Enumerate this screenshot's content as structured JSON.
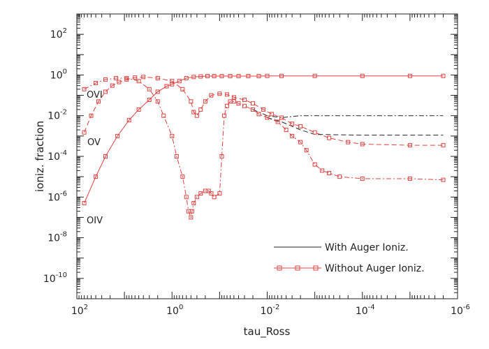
{
  "chart_data": {
    "type": "line",
    "xlabel": "tau_Ross",
    "ylabel": "ioniz. fraction",
    "x_scale": "log",
    "y_scale": "log",
    "x_reversed": true,
    "xlim": [
      100,
      1e-06
    ],
    "ylim": [
      1e-11,
      1000
    ],
    "x_ticks": [
      {
        "value": 100,
        "base": "10",
        "exp": "2"
      },
      {
        "value": 1,
        "base": "10",
        "exp": "0"
      },
      {
        "value": 0.01,
        "base": "10",
        "exp": "-2"
      },
      {
        "value": 0.0001,
        "base": "10",
        "exp": "-4"
      },
      {
        "value": 1e-06,
        "base": "10",
        "exp": "-6"
      }
    ],
    "y_ticks": [
      {
        "value": 1e-10,
        "base": "10",
        "exp": "-10"
      },
      {
        "value": 1e-08,
        "base": "10",
        "exp": "-8"
      },
      {
        "value": 1e-06,
        "base": "10",
        "exp": "-6"
      },
      {
        "value": 0.0001,
        "base": "10",
        "exp": "-4"
      },
      {
        "value": 0.01,
        "base": "10",
        "exp": "-2"
      },
      {
        "value": 1,
        "base": "10",
        "exp": "0"
      },
      {
        "value": 100,
        "base": "10",
        "exp": "2"
      }
    ],
    "legend": {
      "placement": "bottom-right",
      "entries": [
        {
          "label": "With Auger Ioniz.",
          "style": "solid",
          "markers": false
        },
        {
          "label": "Without Auger Ioniz.",
          "style": "solid",
          "markers": true
        }
      ]
    },
    "annotations": [
      "OVI",
      "OV",
      "OIV"
    ],
    "colors": {
      "with_auger": "#222222",
      "without_auger": "#e0403f",
      "axes": "#222222"
    },
    "series": [
      {
        "ion": "OIV",
        "annotation_index": 2,
        "case": "without_auger",
        "dash": "solid",
        "markers": true,
        "points": [
          [
            70,
            5e-07
          ],
          [
            40,
            1e-05
          ],
          [
            25,
            0.0001
          ],
          [
            14,
            0.001
          ],
          [
            8,
            0.006
          ],
          [
            5,
            0.02
          ],
          [
            3,
            0.06
          ],
          [
            2,
            0.15
          ],
          [
            1.3,
            0.28
          ],
          [
            1,
            0.35
          ],
          [
            0.7,
            0.5
          ],
          [
            0.5,
            0.7
          ],
          [
            0.35,
            0.8
          ],
          [
            0.25,
            0.85
          ],
          [
            0.18,
            0.88
          ],
          [
            0.13,
            0.88
          ],
          [
            0.09,
            0.88
          ],
          [
            0.06,
            0.88
          ],
          [
            0.04,
            0.88
          ],
          [
            0.025,
            0.88
          ],
          [
            0.015,
            0.88
          ],
          [
            0.01,
            0.9
          ],
          [
            0.005,
            0.9
          ],
          [
            0.001,
            0.9
          ],
          [
            0.0001,
            0.9
          ],
          [
            1e-05,
            0.9
          ],
          [
            2e-06,
            0.9
          ]
        ]
      },
      {
        "ion": "OV",
        "annotation_index": 1,
        "case": "without_auger",
        "dash": "dashed",
        "markers": true,
        "points": [
          [
            70,
            0.0015
          ],
          [
            50,
            0.01
          ],
          [
            35,
            0.05
          ],
          [
            25,
            0.15
          ],
          [
            18,
            0.3
          ],
          [
            13,
            0.45
          ],
          [
            9,
            0.6
          ],
          [
            6,
            0.75
          ],
          [
            4,
            0.8
          ],
          [
            2,
            0.7
          ],
          [
            1,
            0.5
          ],
          [
            0.6,
            0.2
          ],
          [
            0.4,
            0.05
          ],
          [
            0.35,
            0.015
          ],
          [
            0.3,
            0.01
          ],
          [
            0.25,
            0.02
          ],
          [
            0.2,
            0.05
          ],
          [
            0.15,
            0.1
          ],
          [
            0.1,
            0.12
          ],
          [
            0.07,
            0.11
          ],
          [
            0.05,
            0.08
          ],
          [
            0.03,
            0.06
          ],
          [
            0.02,
            0.04
          ],
          [
            0.012,
            0.02
          ],
          [
            0.008,
            0.012
          ],
          [
            0.005,
            0.008
          ],
          [
            0.003,
            0.004
          ],
          [
            0.002,
            0.003
          ],
          [
            0.001,
            0.0015
          ],
          [
            0.0005,
            0.0008
          ],
          [
            0.0002,
            0.0005
          ],
          [
            0.0001,
            0.0004
          ],
          [
            1e-05,
            0.00035
          ],
          [
            2e-06,
            0.00035
          ]
        ]
      },
      {
        "ion": "OVI",
        "annotation_index": 0,
        "case": "without_auger",
        "dash": "dashdot",
        "markers": true,
        "points": [
          [
            70,
            0.2
          ],
          [
            40,
            0.4
          ],
          [
            25,
            0.6
          ],
          [
            15,
            0.7
          ],
          [
            9,
            0.7
          ],
          [
            5,
            0.5
          ],
          [
            3,
            0.2
          ],
          [
            2,
            0.05
          ],
          [
            1.5,
            0.01
          ],
          [
            1,
            0.001
          ],
          [
            0.8,
            0.0001
          ],
          [
            0.6,
            1e-05
          ],
          [
            0.5,
            1e-06
          ],
          [
            0.45,
            2e-07
          ],
          [
            0.4,
            1e-07
          ],
          [
            0.38,
            2e-07
          ],
          [
            0.35,
            5e-07
          ],
          [
            0.3,
            1e-06
          ],
          [
            0.25,
            1.5e-06
          ],
          [
            0.2,
            2e-06
          ],
          [
            0.17,
            2e-06
          ],
          [
            0.15,
            1.5e-06
          ],
          [
            0.13,
            1e-06
          ],
          [
            0.1,
            1.5e-06
          ],
          [
            0.09,
            0.0001
          ],
          [
            0.08,
            0.01
          ],
          [
            0.07,
            0.03
          ],
          [
            0.06,
            0.05
          ],
          [
            0.05,
            0.05
          ],
          [
            0.04,
            0.04
          ],
          [
            0.03,
            0.03
          ],
          [
            0.02,
            0.02
          ],
          [
            0.015,
            0.012
          ],
          [
            0.01,
            0.008
          ],
          [
            0.006,
            0.005
          ],
          [
            0.004,
            0.002
          ],
          [
            0.003,
            0.001
          ],
          [
            0.002,
            0.0005
          ],
          [
            0.0015,
            0.0002
          ],
          [
            0.001,
            4e-05
          ],
          [
            0.0007,
            2e-05
          ],
          [
            0.0005,
            1.5e-05
          ],
          [
            0.0003,
            1e-05
          ],
          [
            0.0001,
            8e-06
          ],
          [
            1e-05,
            8e-06
          ],
          [
            2e-06,
            7e-06
          ]
        ]
      },
      {
        "ion": "OVI",
        "case": "with_auger",
        "dash": "dashdot",
        "markers": false,
        "points": [
          [
            0.02,
            0.02
          ],
          [
            0.01,
            0.01
          ],
          [
            0.005,
            0.008
          ],
          [
            0.002,
            0.01
          ],
          [
            0.001,
            0.01
          ],
          [
            0.0001,
            0.01
          ],
          [
            1e-05,
            0.01
          ],
          [
            2e-06,
            0.01
          ]
        ]
      },
      {
        "ion": "OV",
        "case": "with_auger",
        "dash": "dashed",
        "markers": false,
        "points": [
          [
            0.01,
            0.008
          ],
          [
            0.005,
            0.005
          ],
          [
            0.002,
            0.002
          ],
          [
            0.001,
            0.0012
          ],
          [
            0.0001,
            0.0011
          ],
          [
            1e-05,
            0.0011
          ],
          [
            2e-06,
            0.0011
          ]
        ]
      }
    ]
  }
}
